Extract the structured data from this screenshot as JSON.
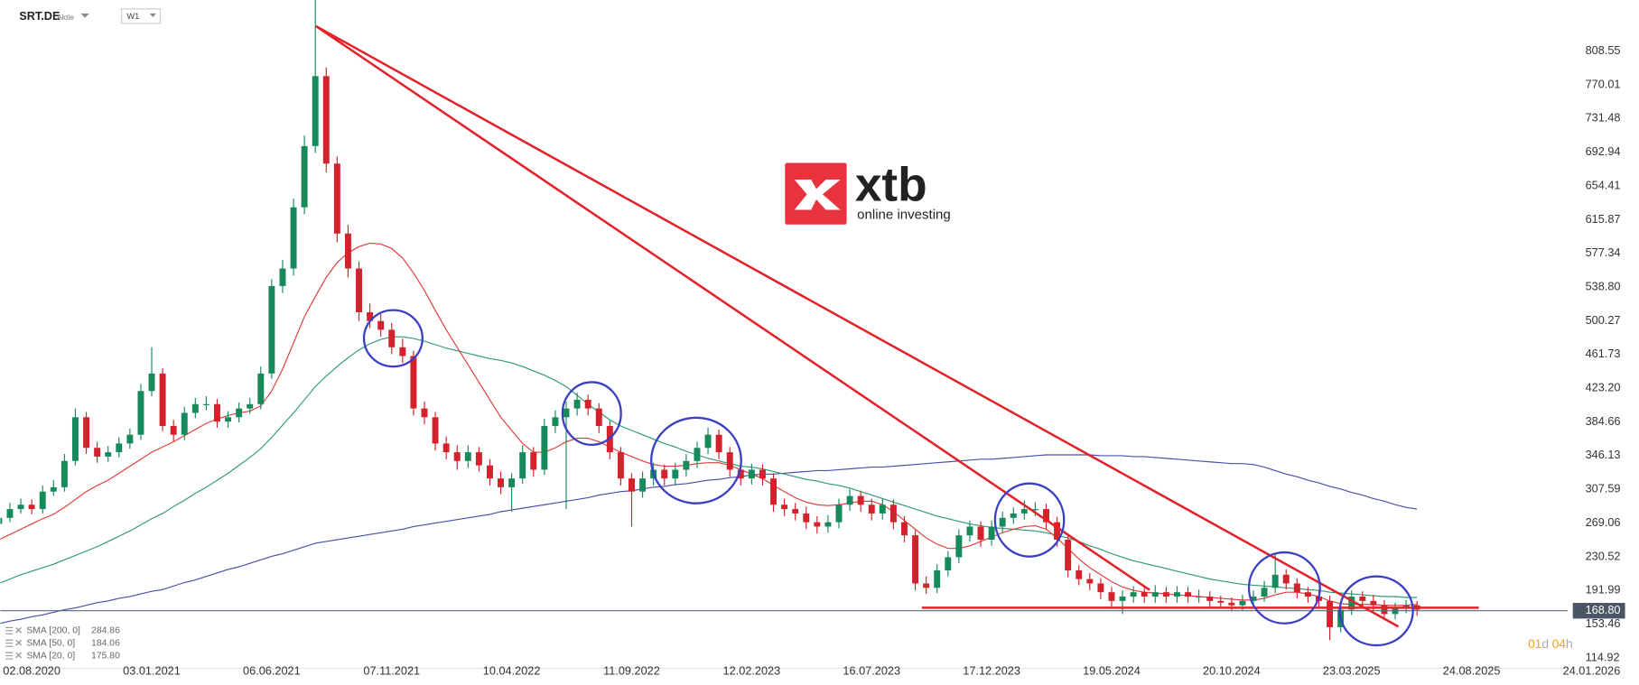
{
  "header": {
    "symbol": "SRT.DE",
    "kind": "Aktie",
    "interval": "W1"
  },
  "logo": {
    "brand": "xtb",
    "tagline": "online investing"
  },
  "countdown": {
    "days": "01",
    "day_unit": "d",
    "hours": "04",
    "hour_unit": "h"
  },
  "chart_data": {
    "type": "candlestick",
    "categories": [
      null,
      null,
      null,
      "02.08.2020",
      null,
      null,
      null,
      null,
      null,
      null,
      null,
      null,
      null,
      null,
      "03.01.2021",
      null,
      null,
      null,
      null,
      null,
      null,
      null,
      null,
      null,
      null,
      "06.06.2021",
      null,
      null,
      null,
      null,
      null,
      null,
      null,
      null,
      null,
      null,
      "07.11.2021",
      null,
      null,
      null,
      null,
      null,
      null,
      null,
      null,
      null,
      null,
      "10.04.2022",
      null,
      null,
      null,
      null,
      null,
      null,
      null,
      null,
      null,
      null,
      "11.09.2022",
      null,
      null,
      null,
      null,
      null,
      null,
      null,
      null,
      null,
      null,
      "12.02.2023",
      null,
      null,
      null,
      null,
      null,
      null,
      null,
      null,
      null,
      null,
      "16.07.2023",
      null,
      null,
      null,
      null,
      null,
      null,
      null,
      null,
      null,
      null,
      "17.12.2023",
      null,
      null,
      null,
      null,
      null,
      null,
      null,
      null,
      null,
      null,
      "19.05.2024",
      null,
      null,
      null,
      null,
      null,
      null,
      null,
      null,
      null,
      null,
      "20.10.2024",
      null,
      null,
      null,
      null,
      null,
      null,
      null,
      null,
      null,
      null,
      "23.03.2025",
      null,
      null,
      null,
      null,
      null,
      null,
      null,
      null,
      null,
      null,
      "24.08.2025",
      null,
      null,
      null,
      null,
      null,
      null,
      null,
      null,
      null,
      null,
      "24.01.2026"
    ],
    "open": [
      268,
      275,
      285,
      290,
      285,
      305,
      310,
      340,
      390,
      355,
      345,
      350,
      360,
      370,
      420,
      440,
      380,
      370,
      395,
      405,
      405,
      385,
      390,
      400,
      405,
      440,
      540,
      560,
      630,
      700,
      780,
      680,
      600,
      560,
      510,
      500,
      490,
      470,
      460,
      400,
      390,
      360,
      350,
      340,
      350,
      335,
      320,
      310,
      320,
      350,
      330,
      380,
      390,
      400,
      410,
      400,
      380,
      350,
      320,
      305,
      320,
      330,
      320,
      330,
      340,
      355,
      370,
      350,
      330,
      320,
      330,
      320,
      290,
      285,
      280,
      270,
      265,
      270,
      290,
      300,
      290,
      280,
      290,
      270,
      255,
      200,
      195,
      215,
      230,
      255,
      265,
      250,
      265,
      275,
      280,
      285,
      285,
      270,
      250,
      215,
      205,
      200,
      190,
      180,
      185,
      190,
      185,
      190,
      185,
      190,
      185,
      185,
      180,
      178,
      175,
      180,
      185,
      195,
      210,
      200,
      190,
      185,
      180,
      150,
      170,
      185,
      180,
      175,
      165,
      172,
      175,
      null,
      null,
      null,
      null,
      null,
      null,
      null,
      null,
      null,
      null,
      null,
      null,
      null,
      null,
      null,
      null
    ],
    "high": [
      282,
      292,
      297,
      296,
      312,
      318,
      348,
      400,
      396,
      362,
      357,
      367,
      377,
      428,
      470,
      446,
      387,
      402,
      412,
      414,
      411,
      397,
      407,
      412,
      448,
      548,
      570,
      640,
      712,
      868,
      790,
      688,
      610,
      568,
      520,
      508,
      498,
      480,
      466,
      408,
      396,
      368,
      358,
      358,
      356,
      342,
      328,
      326,
      358,
      356,
      388,
      398,
      408,
      418,
      416,
      406,
      386,
      356,
      326,
      328,
      338,
      336,
      338,
      348,
      362,
      378,
      376,
      356,
      338,
      337,
      336,
      326,
      297,
      292,
      288,
      277,
      278,
      297,
      308,
      306,
      297,
      297,
      296,
      277,
      261,
      208,
      222,
      237,
      262,
      272,
      271,
      272,
      282,
      287,
      295,
      293,
      291,
      276,
      256,
      221,
      212,
      206,
      196,
      192,
      197,
      196,
      198,
      196,
      197,
      196,
      193,
      191,
      186,
      184,
      187,
      192,
      203,
      235,
      216,
      206,
      196,
      192,
      186,
      177,
      192,
      191,
      187,
      181,
      178,
      181,
      180,
      null,
      null,
      null,
      null,
      null,
      null,
      null,
      null,
      null,
      null,
      null,
      null,
      null,
      null,
      null,
      null
    ],
    "low": [
      262,
      270,
      280,
      279,
      280,
      300,
      305,
      335,
      348,
      338,
      339,
      344,
      354,
      364,
      414,
      374,
      362,
      364,
      389,
      398,
      378,
      378,
      384,
      394,
      399,
      434,
      532,
      552,
      622,
      692,
      670,
      590,
      550,
      500,
      492,
      482,
      462,
      452,
      392,
      382,
      352,
      342,
      330,
      332,
      328,
      312,
      302,
      282,
      314,
      322,
      324,
      372,
      285,
      392,
      392,
      372,
      342,
      312,
      265,
      298,
      312,
      312,
      312,
      322,
      332,
      348,
      342,
      322,
      312,
      313,
      312,
      282,
      277,
      272,
      262,
      257,
      258,
      263,
      283,
      282,
      272,
      273,
      262,
      247,
      192,
      188,
      189,
      208,
      223,
      248,
      242,
      243,
      258,
      268,
      273,
      277,
      262,
      242,
      207,
      198,
      192,
      182,
      172,
      165,
      178,
      178,
      178,
      178,
      178,
      178,
      178,
      173,
      171,
      168,
      169,
      174,
      179,
      189,
      193,
      183,
      178,
      173,
      135,
      144,
      164,
      173,
      168,
      158,
      159,
      166,
      163,
      null,
      null,
      null,
      null,
      null,
      null,
      null,
      null,
      null,
      null,
      null,
      null,
      null,
      null,
      null,
      null
    ],
    "close": [
      275,
      285,
      290,
      285,
      305,
      310,
      340,
      390,
      355,
      345,
      350,
      360,
      370,
      420,
      440,
      380,
      370,
      395,
      405,
      405,
      385,
      390,
      400,
      405,
      440,
      540,
      560,
      630,
      700,
      780,
      680,
      600,
      560,
      510,
      500,
      490,
      470,
      460,
      400,
      390,
      360,
      350,
      340,
      350,
      335,
      320,
      310,
      320,
      350,
      330,
      380,
      390,
      400,
      410,
      400,
      380,
      350,
      320,
      305,
      320,
      330,
      320,
      330,
      340,
      355,
      370,
      350,
      330,
      320,
      330,
      320,
      290,
      285,
      280,
      270,
      265,
      270,
      290,
      300,
      290,
      280,
      290,
      270,
      255,
      200,
      195,
      215,
      230,
      255,
      265,
      250,
      265,
      275,
      280,
      285,
      285,
      270,
      250,
      215,
      205,
      200,
      190,
      180,
      185,
      190,
      185,
      190,
      185,
      190,
      185,
      185,
      180,
      178,
      175,
      180,
      185,
      195,
      210,
      200,
      190,
      185,
      180,
      150,
      170,
      185,
      180,
      175,
      165,
      172,
      175,
      170,
      null,
      null,
      null,
      null,
      null,
      null,
      null,
      null,
      null,
      null,
      null,
      null,
      null,
      null,
      null,
      null
    ],
    "up_color": "#178a5c",
    "down_color": "#d3222b",
    "series": [
      {
        "name": "SMA [200, 0]",
        "color": "#4a4fa6",
        "legend_value": 284.86,
        "values": [
          154,
          157,
          159,
          162,
          164,
          167,
          170,
          172,
          175,
          178,
          180,
          183,
          185,
          188,
          191,
          193,
          197,
          201,
          204,
          208,
          212,
          216,
          219,
          223,
          227,
          231,
          234,
          238,
          242,
          246,
          248,
          250,
          252,
          254,
          256,
          258,
          260,
          262,
          265,
          267,
          269,
          271,
          273,
          275,
          277,
          279,
          282,
          284,
          286,
          288,
          290,
          292,
          294,
          296,
          298,
          301,
          303,
          305,
          306,
          308,
          310,
          311,
          313,
          314,
          316,
          318,
          319,
          321,
          322,
          324,
          325,
          325,
          326,
          327,
          328,
          329,
          329,
          330,
          331,
          332,
          333,
          333,
          334,
          335,
          336,
          337,
          338,
          339,
          340,
          341,
          342,
          342,
          343,
          344,
          345,
          346,
          347,
          347,
          347,
          347,
          347,
          346,
          346,
          346,
          345,
          345,
          344,
          343,
          342,
          341,
          340,
          339,
          338,
          337,
          337,
          336,
          333,
          329,
          325,
          322,
          318,
          315,
          311,
          308,
          304,
          301,
          297,
          294,
          290,
          287,
          285,
          null,
          null,
          null,
          null,
          null,
          null,
          null,
          null,
          null,
          null,
          null,
          null,
          null,
          null,
          null,
          null
        ]
      },
      {
        "name": "SMA [50, 0]",
        "color": "#2f9a72",
        "legend_value": 184.06,
        "values": [
          200,
          205,
          210,
          214,
          218,
          222,
          227,
          232,
          237,
          242,
          248,
          254,
          260,
          267,
          274,
          280,
          288,
          295,
          303,
          310,
          318,
          326,
          335,
          344,
          354,
          367,
          381,
          395,
          410,
          425,
          437,
          448,
          458,
          467,
          474,
          479,
          482,
          482,
          480,
          477,
          473,
          469,
          466,
          463,
          460,
          457,
          455,
          452,
          448,
          443,
          438,
          432,
          425,
          415,
          405,
          396,
          387,
          380,
          375,
          370,
          365,
          360,
          356,
          351,
          347,
          343,
          340,
          337,
          334,
          333,
          331,
          328,
          325,
          322,
          319,
          317,
          314,
          312,
          309,
          305,
          301,
          297,
          293,
          289,
          285,
          281,
          277,
          274,
          271,
          268,
          266,
          264,
          263,
          262,
          261,
          260,
          258,
          255,
          252,
          248,
          243,
          239,
          234,
          230,
          226,
          223,
          220,
          217,
          214,
          211,
          208,
          205,
          203,
          201,
          199,
          198,
          197,
          196,
          195,
          194,
          193,
          192,
          190,
          189,
          188,
          187,
          186,
          185,
          185,
          184,
          184,
          null,
          null,
          null,
          null,
          null,
          null,
          null,
          null,
          null,
          null,
          null,
          null,
          null,
          null,
          null,
          null
        ]
      },
      {
        "name": "SMA [20, 0]",
        "color": "#e23b3b",
        "legend_value": {
          "value": 175.8,
          "label": "175.80"
        },
        "values": [
          250,
          256,
          262,
          268,
          274,
          279,
          287,
          296,
          305,
          312,
          318,
          326,
          334,
          342,
          350,
          356,
          362,
          369,
          376,
          383,
          388,
          392,
          395,
          397,
          403,
          420,
          445,
          475,
          505,
          528,
          550,
          567,
          578,
          585,
          589,
          588,
          583,
          572,
          555,
          535,
          512,
          490,
          470,
          450,
          430,
          410,
          390,
          375,
          360,
          350,
          350,
          355,
          362,
          366,
          366,
          362,
          356,
          350,
          345,
          340,
          336,
          334,
          334,
          335,
          337,
          338,
          338,
          335,
          330,
          325,
          320,
          312,
          305,
          298,
          293,
          290,
          289,
          290,
          292,
          294,
          294,
          290,
          282,
          272,
          262,
          252,
          245,
          240,
          240,
          243,
          248,
          253,
          258,
          262,
          265,
          266,
          262,
          252,
          240,
          228,
          218,
          210,
          202,
          196,
          192,
          190,
          189,
          188,
          187,
          186,
          185,
          184,
          183,
          182,
          181,
          181,
          183,
          187,
          190,
          190,
          188,
          185,
          180,
          177,
          176,
          176,
          176,
          175,
          175,
          175,
          176,
          null,
          null,
          null,
          null,
          null,
          null,
          null,
          null,
          null,
          null,
          null,
          null,
          null,
          null,
          null,
          null
        ]
      }
    ],
    "last_price": {
      "value": 168.8,
      "label": "168.80"
    },
    "ylim": [
      103,
      867
    ],
    "yticks": [
      114.92,
      153.46,
      191.99,
      230.52,
      269.06,
      307.59,
      346.13,
      384.66,
      {
        "value": 423.2,
        "label": "423.20"
      },
      461.73,
      500.27,
      {
        "value": 538.8,
        "label": "538.80"
      },
      577.34,
      615.87,
      654.41,
      692.94,
      731.48,
      770.01,
      808.55
    ],
    "grid": false
  }
}
